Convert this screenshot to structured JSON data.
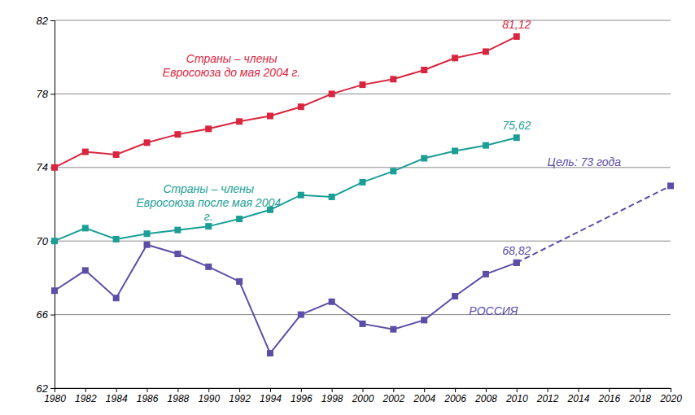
{
  "chart_data": {
    "type": "line",
    "xlim": [
      1980,
      2020
    ],
    "xticks": [
      1980,
      1982,
      1984,
      1986,
      1988,
      1990,
      1992,
      1994,
      1996,
      1998,
      2000,
      2002,
      2004,
      2006,
      2008,
      2010,
      2012,
      2014,
      2016,
      2018,
      2020
    ],
    "ylim": [
      62,
      82
    ],
    "yticks": [
      62,
      66,
      70,
      74,
      78,
      82
    ],
    "grid": true,
    "series": [
      {
        "name": "Страны – члены Евросоюза до мая 2004 г.",
        "color": "#d9263f",
        "marker": "square",
        "line_style": "solid",
        "x": [
          1980,
          1982,
          1984,
          1986,
          1988,
          1990,
          1992,
          1994,
          1996,
          1998,
          2000,
          2002,
          2004,
          2006,
          2008,
          2010
        ],
        "values": [
          74.0,
          74.85,
          74.7,
          75.35,
          75.8,
          76.1,
          76.5,
          76.8,
          77.3,
          78.0,
          78.5,
          78.8,
          79.3,
          79.95,
          80.3,
          81.12
        ],
        "value_labels": [
          null,
          null,
          null,
          null,
          null,
          null,
          null,
          null,
          null,
          null,
          null,
          null,
          null,
          null,
          null,
          "81,12"
        ]
      },
      {
        "name": "Страны – члены Евросоюза после мая 2004 г.",
        "color": "#1a9e96",
        "marker": "square",
        "line_style": "solid",
        "x": [
          1980,
          1982,
          1984,
          1986,
          1988,
          1990,
          1992,
          1994,
          1996,
          1998,
          2000,
          2002,
          2004,
          2006,
          2008,
          2010
        ],
        "values": [
          70.0,
          70.7,
          70.1,
          70.4,
          70.6,
          70.8,
          71.2,
          71.7,
          72.5,
          72.4,
          73.2,
          73.8,
          74.5,
          74.9,
          75.2,
          75.62
        ],
        "value_labels": [
          null,
          null,
          null,
          null,
          null,
          null,
          null,
          null,
          null,
          null,
          null,
          null,
          null,
          null,
          null,
          "75,62"
        ]
      },
      {
        "name": "РОССИЯ",
        "color": "#5b4ea6",
        "marker": "square",
        "line_style": "solid",
        "x": [
          1980,
          1982,
          1984,
          1986,
          1988,
          1990,
          1992,
          1994,
          1996,
          1998,
          2000,
          2002,
          2004,
          2006,
          2008,
          2010
        ],
        "values": [
          67.3,
          68.4,
          66.9,
          69.8,
          69.3,
          68.6,
          67.8,
          63.9,
          66.0,
          66.7,
          65.5,
          65.2,
          65.7,
          67.0,
          68.2,
          68.82
        ],
        "value_labels": [
          null,
          null,
          null,
          null,
          null,
          null,
          null,
          null,
          null,
          null,
          null,
          null,
          null,
          null,
          null,
          "68,82"
        ]
      },
      {
        "name": "Цель: 73 года",
        "color": "#5b4ea6",
        "marker": "square",
        "line_style": "dashed",
        "x": [
          2010,
          2020
        ],
        "values": [
          68.82,
          73
        ]
      }
    ]
  }
}
